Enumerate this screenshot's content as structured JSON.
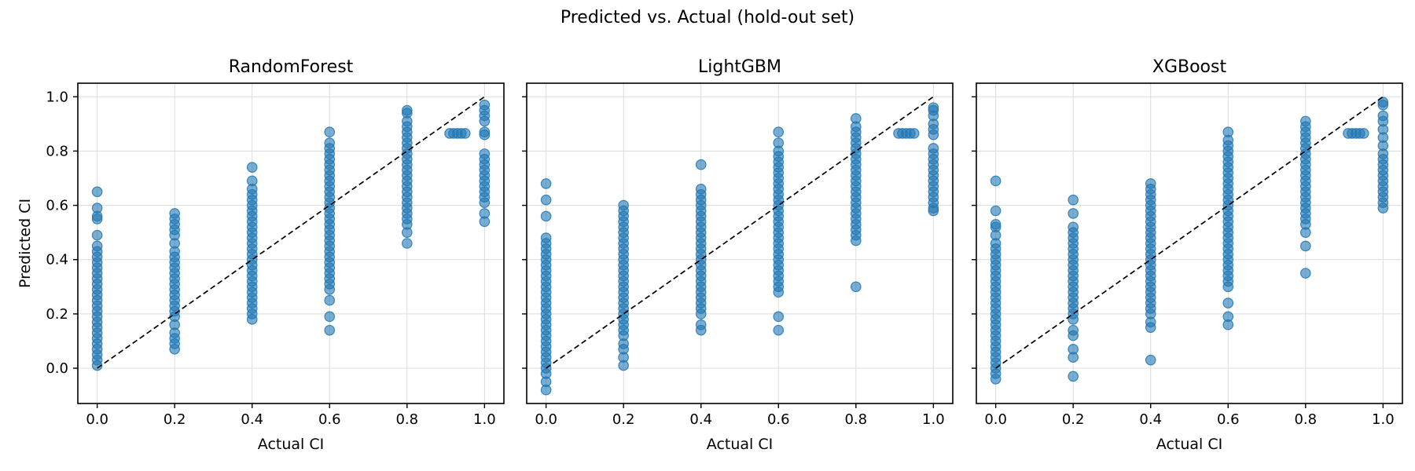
{
  "figure": {
    "title": "Predicted vs. Actual (hold-out set)",
    "point_color": "#1f77b4",
    "point_opacity": 0.6,
    "reference_line": {
      "style": "dashed",
      "color": "#000000",
      "from": [
        0,
        0
      ],
      "to": [
        1,
        1
      ]
    }
  },
  "chart_data": [
    {
      "type": "scatter",
      "title": "RandomForest",
      "xlabel": "Actual CI",
      "ylabel": "Predicted CI",
      "xlim": [
        -0.05,
        1.05
      ],
      "ylim": [
        -0.13,
        1.05
      ],
      "xticks": [
        "0.0",
        "0.2",
        "0.4",
        "0.6",
        "0.8",
        "1.0"
      ],
      "yticks": [
        "0.0",
        "0.2",
        "0.4",
        "0.6",
        "0.8",
        "1.0"
      ],
      "grid": true,
      "groups": [
        {
          "x": 0.0,
          "y": [
            0.65,
            0.59,
            0.56,
            0.55,
            0.49,
            0.45,
            0.43,
            0.41,
            0.39,
            0.37,
            0.35,
            0.33,
            0.31,
            0.29,
            0.27,
            0.25,
            0.23,
            0.21,
            0.19,
            0.17,
            0.15,
            0.13,
            0.11,
            0.09,
            0.07,
            0.05,
            0.03,
            0.01
          ]
        },
        {
          "x": 0.2,
          "y": [
            0.57,
            0.55,
            0.53,
            0.51,
            0.49,
            0.46,
            0.43,
            0.41,
            0.39,
            0.37,
            0.35,
            0.33,
            0.31,
            0.29,
            0.27,
            0.25,
            0.23,
            0.21,
            0.19,
            0.16,
            0.13,
            0.11,
            0.09,
            0.07
          ]
        },
        {
          "x": 0.4,
          "y": [
            0.74,
            0.69,
            0.66,
            0.64,
            0.62,
            0.6,
            0.58,
            0.56,
            0.54,
            0.52,
            0.5,
            0.48,
            0.46,
            0.44,
            0.42,
            0.4,
            0.38,
            0.36,
            0.34,
            0.32,
            0.3,
            0.28,
            0.26,
            0.24,
            0.22,
            0.2,
            0.18
          ]
        },
        {
          "x": 0.6,
          "y": [
            0.87,
            0.83,
            0.81,
            0.79,
            0.77,
            0.75,
            0.73,
            0.71,
            0.69,
            0.67,
            0.65,
            0.63,
            0.61,
            0.59,
            0.57,
            0.55,
            0.53,
            0.51,
            0.49,
            0.47,
            0.45,
            0.43,
            0.41,
            0.39,
            0.37,
            0.35,
            0.33,
            0.31,
            0.29,
            0.25,
            0.19,
            0.14
          ]
        },
        {
          "x": 0.8,
          "y": [
            0.95,
            0.94,
            0.91,
            0.89,
            0.87,
            0.85,
            0.83,
            0.81,
            0.79,
            0.77,
            0.75,
            0.73,
            0.71,
            0.69,
            0.67,
            0.65,
            0.63,
            0.61,
            0.59,
            0.57,
            0.55,
            0.53,
            0.5,
            0.46
          ]
        },
        {
          "x": 1.0,
          "y": [
            0.97,
            0.95,
            0.93,
            0.91,
            0.87,
            0.86,
            0.79,
            0.77,
            0.75,
            0.73,
            0.71,
            0.69,
            0.67,
            0.65,
            0.63,
            0.61,
            0.57,
            0.54
          ]
        }
      ],
      "points": [
        [
          0.91,
          0.865
        ],
        [
          0.92,
          0.865
        ],
        [
          0.93,
          0.865
        ],
        [
          0.94,
          0.865
        ],
        [
          0.95,
          0.865
        ]
      ]
    },
    {
      "type": "scatter",
      "title": "LightGBM",
      "xlabel": "Actual CI",
      "ylabel": "",
      "xlim": [
        -0.05,
        1.05
      ],
      "ylim": [
        -0.13,
        1.05
      ],
      "xticks": [
        "0.0",
        "0.2",
        "0.4",
        "0.6",
        "0.8",
        "1.0"
      ],
      "yticks": [
        "",
        "",
        "",
        "",
        "",
        ""
      ],
      "grid": true,
      "groups": [
        {
          "x": 0.0,
          "y": [
            0.68,
            0.62,
            0.56,
            0.48,
            0.46,
            0.44,
            0.42,
            0.4,
            0.38,
            0.36,
            0.34,
            0.32,
            0.3,
            0.28,
            0.26,
            0.24,
            0.22,
            0.2,
            0.18,
            0.16,
            0.14,
            0.12,
            0.1,
            0.08,
            0.06,
            0.04,
            0.02,
            0.0,
            -0.02,
            -0.05,
            -0.08
          ]
        },
        {
          "x": 0.2,
          "y": [
            0.6,
            0.58,
            0.56,
            0.54,
            0.52,
            0.5,
            0.48,
            0.46,
            0.44,
            0.42,
            0.4,
            0.38,
            0.36,
            0.34,
            0.32,
            0.3,
            0.28,
            0.26,
            0.24,
            0.22,
            0.2,
            0.18,
            0.16,
            0.14,
            0.12,
            0.09,
            0.07,
            0.04,
            0.01
          ]
        },
        {
          "x": 0.4,
          "y": [
            0.75,
            0.66,
            0.64,
            0.62,
            0.6,
            0.58,
            0.56,
            0.54,
            0.52,
            0.5,
            0.48,
            0.46,
            0.44,
            0.42,
            0.4,
            0.38,
            0.36,
            0.34,
            0.32,
            0.3,
            0.28,
            0.26,
            0.24,
            0.22,
            0.2,
            0.16,
            0.14
          ]
        },
        {
          "x": 0.6,
          "y": [
            0.87,
            0.83,
            0.8,
            0.78,
            0.76,
            0.74,
            0.72,
            0.7,
            0.68,
            0.66,
            0.64,
            0.62,
            0.6,
            0.58,
            0.56,
            0.54,
            0.52,
            0.5,
            0.48,
            0.46,
            0.44,
            0.42,
            0.4,
            0.38,
            0.36,
            0.34,
            0.32,
            0.3,
            0.28,
            0.19,
            0.14
          ]
        },
        {
          "x": 0.8,
          "y": [
            0.92,
            0.89,
            0.87,
            0.85,
            0.83,
            0.81,
            0.79,
            0.77,
            0.75,
            0.73,
            0.71,
            0.69,
            0.67,
            0.65,
            0.63,
            0.61,
            0.59,
            0.57,
            0.55,
            0.53,
            0.51,
            0.49,
            0.47,
            0.3
          ]
        },
        {
          "x": 1.0,
          "y": [
            0.96,
            0.95,
            0.93,
            0.9,
            0.88,
            0.86,
            0.81,
            0.79,
            0.77,
            0.75,
            0.73,
            0.71,
            0.69,
            0.67,
            0.65,
            0.63,
            0.61,
            0.59,
            0.58
          ]
        }
      ],
      "points": [
        [
          0.91,
          0.865
        ],
        [
          0.92,
          0.865
        ],
        [
          0.93,
          0.865
        ],
        [
          0.94,
          0.865
        ],
        [
          0.95,
          0.865
        ]
      ]
    },
    {
      "type": "scatter",
      "title": "XGBoost",
      "xlabel": "Actual CI",
      "ylabel": "",
      "xlim": [
        -0.05,
        1.05
      ],
      "ylim": [
        -0.13,
        1.05
      ],
      "xticks": [
        "0.0",
        "0.2",
        "0.4",
        "0.6",
        "0.8",
        "1.0"
      ],
      "yticks": [
        "",
        "",
        "",
        "",
        "",
        ""
      ],
      "grid": true,
      "groups": [
        {
          "x": 0.0,
          "y": [
            0.69,
            0.58,
            0.53,
            0.52,
            0.49,
            0.46,
            0.44,
            0.42,
            0.4,
            0.38,
            0.36,
            0.34,
            0.32,
            0.3,
            0.28,
            0.26,
            0.24,
            0.22,
            0.2,
            0.18,
            0.16,
            0.14,
            0.12,
            0.1,
            0.08,
            0.06,
            0.04,
            0.02,
            0.0,
            -0.02,
            -0.04
          ]
        },
        {
          "x": 0.2,
          "y": [
            0.62,
            0.57,
            0.52,
            0.5,
            0.48,
            0.46,
            0.44,
            0.42,
            0.4,
            0.38,
            0.36,
            0.34,
            0.32,
            0.3,
            0.28,
            0.26,
            0.24,
            0.22,
            0.2,
            0.18,
            0.14,
            0.12,
            0.07,
            0.04,
            -0.03
          ]
        },
        {
          "x": 0.4,
          "y": [
            0.68,
            0.66,
            0.64,
            0.62,
            0.6,
            0.58,
            0.56,
            0.54,
            0.52,
            0.5,
            0.48,
            0.46,
            0.44,
            0.42,
            0.4,
            0.38,
            0.36,
            0.34,
            0.32,
            0.3,
            0.28,
            0.26,
            0.24,
            0.22,
            0.2,
            0.17,
            0.15,
            0.03
          ]
        },
        {
          "x": 0.6,
          "y": [
            0.87,
            0.84,
            0.82,
            0.8,
            0.78,
            0.76,
            0.74,
            0.72,
            0.7,
            0.68,
            0.66,
            0.64,
            0.62,
            0.6,
            0.58,
            0.56,
            0.54,
            0.52,
            0.5,
            0.48,
            0.46,
            0.44,
            0.42,
            0.4,
            0.38,
            0.36,
            0.34,
            0.32,
            0.3,
            0.24,
            0.19,
            0.16
          ]
        },
        {
          "x": 0.8,
          "y": [
            0.91,
            0.89,
            0.87,
            0.85,
            0.83,
            0.81,
            0.79,
            0.77,
            0.75,
            0.73,
            0.71,
            0.69,
            0.67,
            0.65,
            0.63,
            0.61,
            0.59,
            0.57,
            0.55,
            0.53,
            0.5,
            0.45,
            0.35
          ]
        },
        {
          "x": 1.0,
          "y": [
            0.98,
            0.97,
            0.93,
            0.91,
            0.88,
            0.85,
            0.82,
            0.79,
            0.77,
            0.75,
            0.73,
            0.71,
            0.69,
            0.67,
            0.65,
            0.63,
            0.61,
            0.59
          ]
        }
      ],
      "points": [
        [
          0.91,
          0.865
        ],
        [
          0.92,
          0.865
        ],
        [
          0.93,
          0.865
        ],
        [
          0.94,
          0.865
        ],
        [
          0.95,
          0.865
        ]
      ]
    }
  ]
}
